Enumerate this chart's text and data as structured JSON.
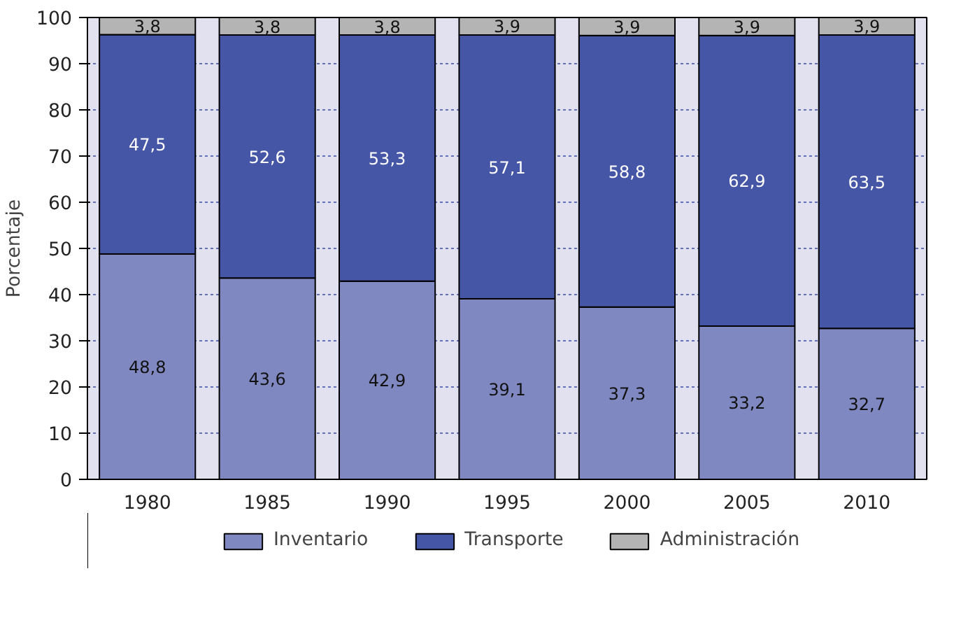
{
  "chart_data": {
    "type": "bar",
    "stacked": true,
    "ylabel": "Porcentaje",
    "categories": [
      "1980",
      "1985",
      "1990",
      "1995",
      "2000",
      "2005",
      "2010"
    ],
    "series": [
      {
        "name": "Inventario",
        "color": "#8088c2",
        "values": [
          48.8,
          43.6,
          42.9,
          39.1,
          37.3,
          33.2,
          32.7
        ],
        "value_labels": [
          "48,8",
          "43,6",
          "42,9",
          "39,1",
          "37,3",
          "33,2",
          "32,7"
        ]
      },
      {
        "name": "Transporte",
        "color": "#4556a6",
        "values": [
          47.5,
          52.6,
          53.3,
          57.1,
          58.8,
          62.9,
          63.5
        ],
        "value_labels": [
          "47,5",
          "52,6",
          "53,3",
          "57,1",
          "58,8",
          "62,9",
          "63,5"
        ]
      },
      {
        "name": "Administración",
        "color": "#b4b4b4",
        "values": [
          3.8,
          3.8,
          3.8,
          3.9,
          3.9,
          3.9,
          3.9
        ],
        "value_labels": [
          "3,8",
          "3,8",
          "3,8",
          "3,9",
          "3,9",
          "3,9",
          "3,9"
        ]
      }
    ],
    "ylim": [
      0,
      100
    ],
    "yticks": [
      0,
      10,
      20,
      30,
      40,
      50,
      60,
      70,
      80,
      90,
      100
    ],
    "grid": "y",
    "legend": "bottom"
  }
}
